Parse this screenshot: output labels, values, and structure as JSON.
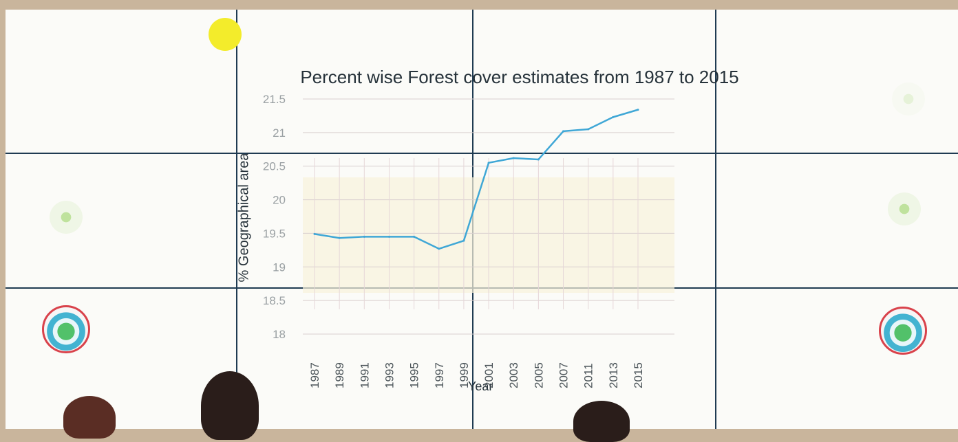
{
  "chart_data": {
    "type": "line",
    "title": "Percent wise Forest cover estimates from 1987 to 2015",
    "xlabel": "Year",
    "ylabel": "% Geographical area",
    "x": [
      "1987",
      "1989",
      "1991",
      "1993",
      "1995",
      "1997",
      "1999",
      "2001",
      "2003",
      "2005",
      "2007",
      "2011",
      "2013",
      "2015"
    ],
    "y_ticks": [
      "21.5",
      "21",
      "20.5",
      "20",
      "19.5",
      "19",
      "18.5",
      "18"
    ],
    "ylim": [
      18,
      21.5
    ],
    "series": [
      {
        "values": [
          19.49,
          19.43,
          19.45,
          19.45,
          19.45,
          19.27,
          19.39,
          20.55,
          20.62,
          20.6,
          21.02,
          21.05,
          21.23,
          21.34
        ],
        "color": "#3fa7d6"
      }
    ]
  }
}
